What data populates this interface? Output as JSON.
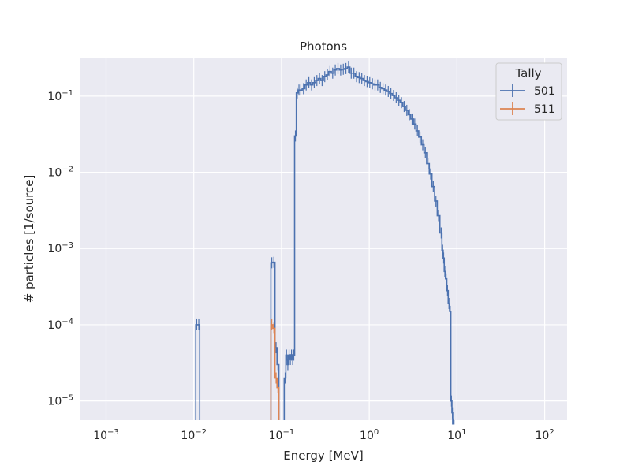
{
  "chart_data": {
    "type": "line",
    "title": "Photons",
    "xlabel": "Energy [MeV]",
    "ylabel": "# particles [1/source]",
    "xscale": "log",
    "yscale": "log",
    "xlim": [
      0.0005,
      180
    ],
    "ylim": [
      5.6e-06,
      0.32
    ],
    "grid": true,
    "legend": {
      "title": "Tally",
      "position": "top-right"
    },
    "x_ticks": [
      {
        "value": 0.001,
        "base": "10",
        "exp": "−3"
      },
      {
        "value": 0.01,
        "base": "10",
        "exp": "−2"
      },
      {
        "value": 0.1,
        "base": "10",
        "exp": "−1"
      },
      {
        "value": 1,
        "base": "10",
        "exp": "0"
      },
      {
        "value": 10,
        "base": "10",
        "exp": "1"
      },
      {
        "value": 100,
        "base": "10",
        "exp": "2"
      }
    ],
    "y_ticks": [
      {
        "value": 1e-05,
        "base": "10",
        "exp": "−5"
      },
      {
        "value": 0.0001,
        "base": "10",
        "exp": "−4"
      },
      {
        "value": 0.001,
        "base": "10",
        "exp": "−3"
      },
      {
        "value": 0.01,
        "base": "10",
        "exp": "−2"
      },
      {
        "value": 0.1,
        "base": "10",
        "exp": "−1"
      }
    ],
    "series": [
      {
        "name": "501",
        "color": "#4c72b0",
        "points": [
          [
            0.0108,
            0.0001
          ],
          [
            0.0114,
            0.0001
          ],
          [
            0.0775,
            0.00065
          ],
          [
            0.0818,
            0.00066
          ],
          [
            0.0867,
            5e-05
          ],
          [
            0.091,
            3e-05
          ],
          [
            0.11,
            2e-05
          ],
          [
            0.114,
            4e-05
          ],
          [
            0.118,
            3e-05
          ],
          [
            0.122,
            4e-05
          ],
          [
            0.126,
            3.5e-05
          ],
          [
            0.13,
            4e-05
          ],
          [
            0.134,
            3.5e-05
          ],
          [
            0.138,
            4e-05
          ],
          [
            0.144,
            0.03
          ],
          [
            0.151,
            0.11
          ],
          [
            0.158,
            0.12
          ],
          [
            0.166,
            0.12
          ],
          [
            0.178,
            0.125
          ],
          [
            0.191,
            0.14
          ],
          [
            0.205,
            0.15
          ],
          [
            0.22,
            0.14
          ],
          [
            0.236,
            0.15
          ],
          [
            0.253,
            0.16
          ],
          [
            0.271,
            0.17
          ],
          [
            0.29,
            0.16
          ],
          [
            0.311,
            0.18
          ],
          [
            0.333,
            0.19
          ],
          [
            0.357,
            0.21
          ],
          [
            0.383,
            0.2
          ],
          [
            0.41,
            0.22
          ],
          [
            0.44,
            0.23
          ],
          [
            0.472,
            0.22
          ],
          [
            0.506,
            0.225
          ],
          [
            0.542,
            0.23
          ],
          [
            0.581,
            0.24
          ],
          [
            0.623,
            0.2
          ],
          [
            0.668,
            0.2
          ],
          [
            0.716,
            0.18
          ],
          [
            0.767,
            0.175
          ],
          [
            0.822,
            0.17
          ],
          [
            0.881,
            0.16
          ],
          [
            0.945,
            0.155
          ],
          [
            1.013,
            0.15
          ],
          [
            1.086,
            0.145
          ],
          [
            1.164,
            0.14
          ],
          [
            1.248,
            0.14
          ],
          [
            1.338,
            0.13
          ],
          [
            1.434,
            0.125
          ],
          [
            1.537,
            0.12
          ],
          [
            1.648,
            0.115
          ],
          [
            1.766,
            0.108
          ],
          [
            1.893,
            0.102
          ],
          [
            2.029,
            0.095
          ],
          [
            2.175,
            0.088
          ],
          [
            2.332,
            0.082
          ],
          [
            2.5,
            0.073
          ],
          [
            2.68,
            0.065
          ],
          [
            2.873,
            0.057
          ],
          [
            3.08,
            0.05
          ],
          [
            3.3,
            0.043
          ],
          [
            3.54,
            0.035
          ],
          [
            3.79,
            0.029
          ],
          [
            4.07,
            0.023
          ],
          [
            4.36,
            0.018
          ],
          [
            4.67,
            0.013
          ],
          [
            5.01,
            0.0095
          ],
          [
            5.37,
            0.0065
          ],
          [
            5.76,
            0.0042
          ],
          [
            6.17,
            0.0027
          ],
          [
            6.61,
            0.0016
          ],
          [
            6.87,
            0.00095
          ],
          [
            7.05,
            0.00075
          ],
          [
            7.27,
            0.0005
          ],
          [
            7.52,
            0.0004
          ],
          [
            7.8,
            0.00028
          ],
          [
            8.1,
            0.00019
          ],
          [
            8.38,
            0.00015
          ],
          [
            8.65,
            1e-05
          ],
          [
            8.87,
            7e-06
          ],
          [
            9.0,
            5e-06
          ]
        ]
      },
      {
        "name": "511",
        "color": "#dd8452",
        "points": [
          [
            0.0775,
            0.0001
          ],
          [
            0.0818,
            9e-05
          ],
          [
            0.0867,
            2e-05
          ],
          [
            0.091,
            1.5e-05
          ]
        ]
      }
    ]
  }
}
